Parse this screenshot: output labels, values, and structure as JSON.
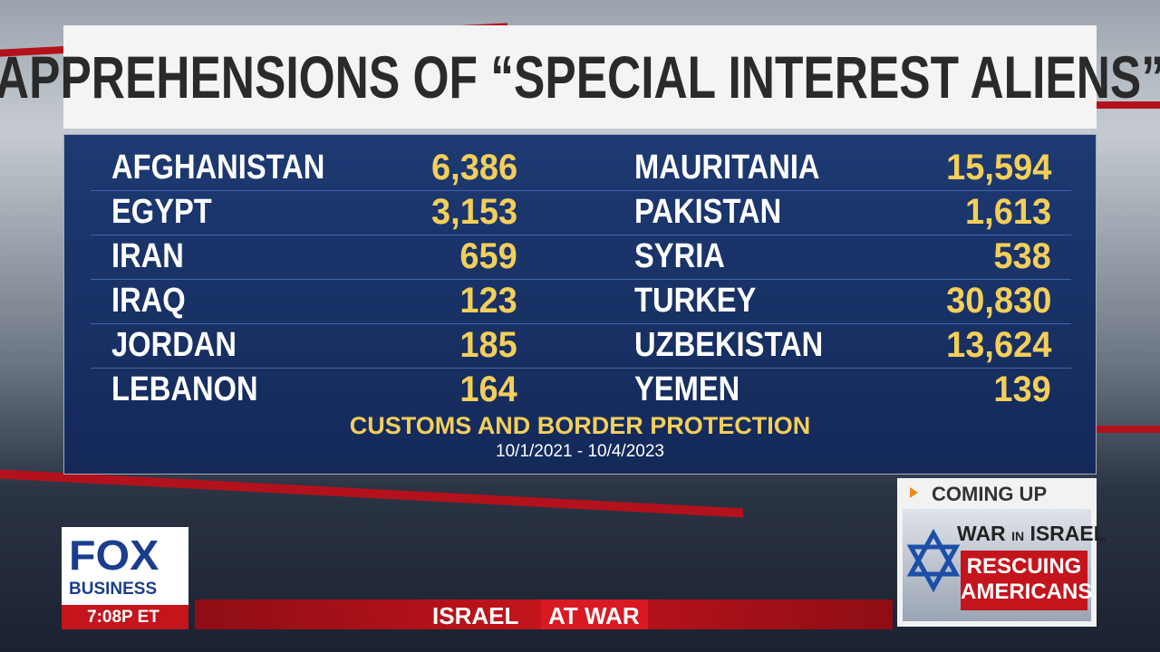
{
  "header": {
    "title": "APPREHENSIONS OF “SPECIAL INTEREST ALIENS”"
  },
  "table": {
    "rows": [
      [
        "AFGHANISTAN",
        "6,386",
        "MAURITANIA",
        "15,594"
      ],
      [
        "EGYPT",
        "3,153",
        "PAKISTAN",
        "1,613"
      ],
      [
        "IRAN",
        "659",
        "SYRIA",
        "538"
      ],
      [
        "IRAQ",
        "123",
        "TURKEY",
        "30,830"
      ],
      [
        "JORDAN",
        "185",
        "UZBEKISTAN",
        "13,624"
      ],
      [
        "LEBANON",
        "164",
        "YEMEN",
        "139"
      ]
    ]
  },
  "source": {
    "name": "CUSTOMS AND BORDER PROTECTION",
    "dates": "10/1/2021 - 10/4/2023"
  },
  "logo": {
    "top": "FOX",
    "bottom": "BUSINESS"
  },
  "clock": "7:08P ET",
  "ticker": {
    "left": "ISRAEL",
    "right": "AT WAR"
  },
  "coming_up": {
    "label": "COMING UP",
    "war": "WAR",
    "in": "IN",
    "israel": "ISRAEL",
    "headline": "RESCUING AMERICANS"
  }
}
